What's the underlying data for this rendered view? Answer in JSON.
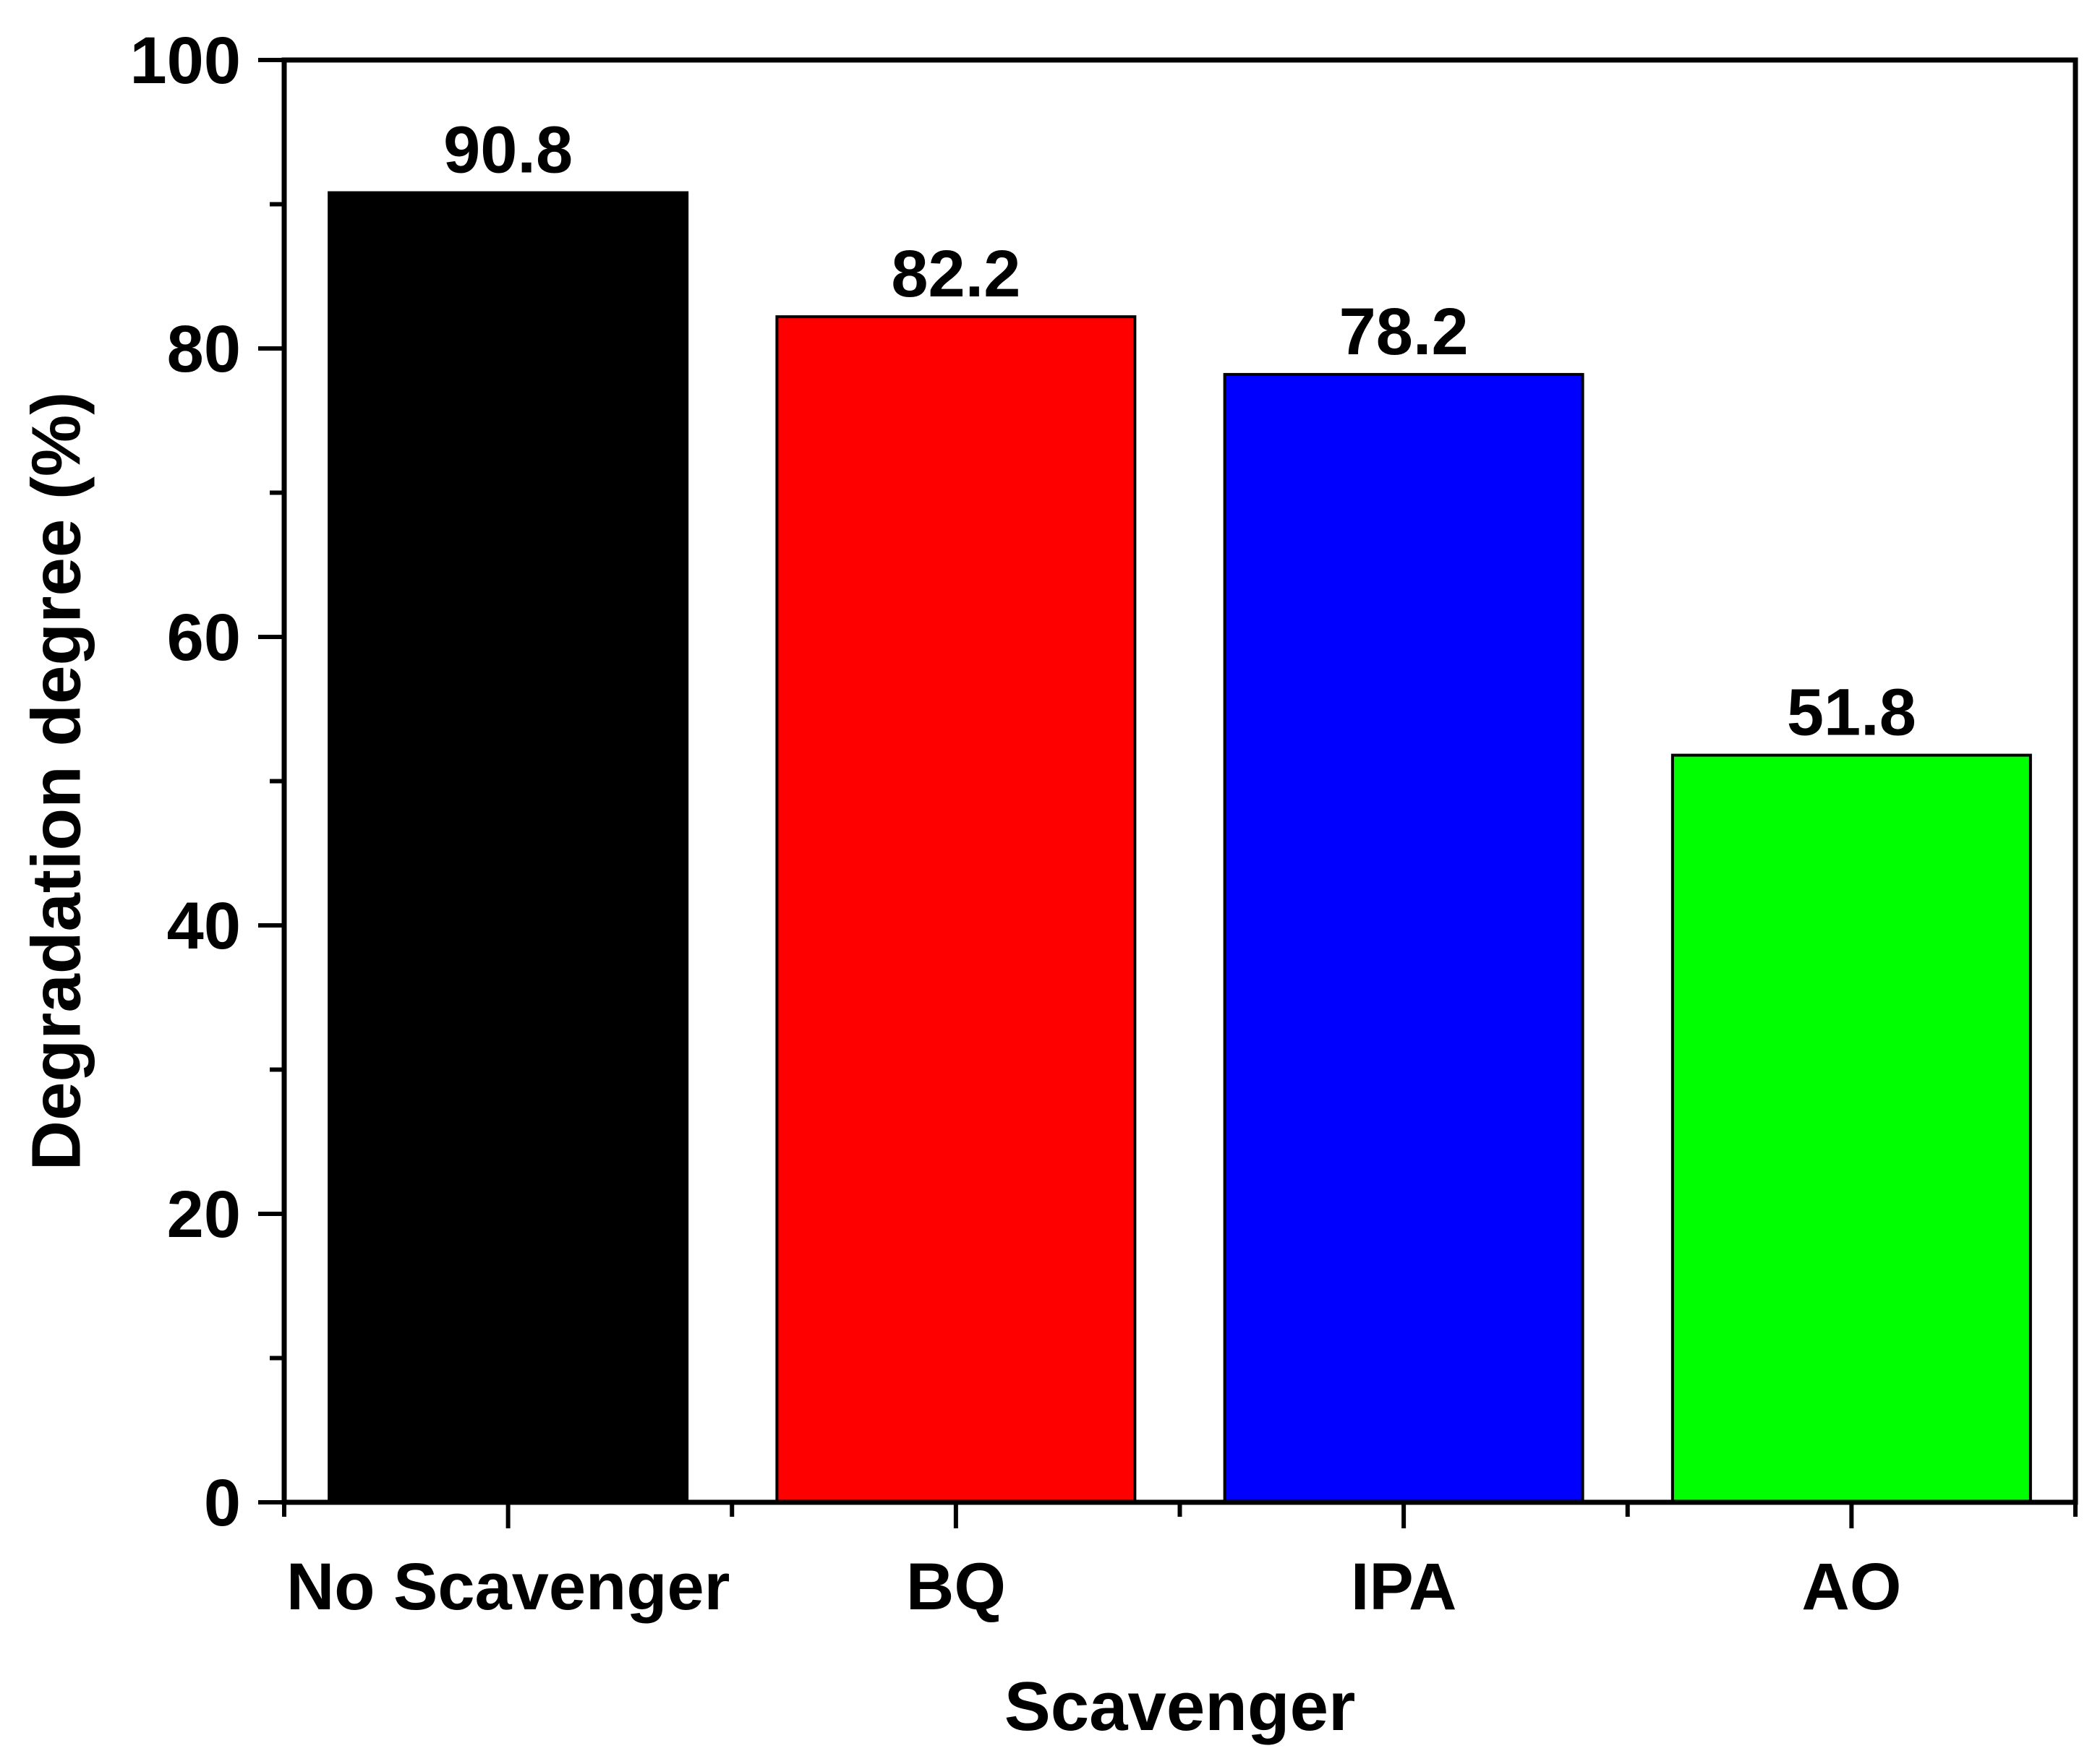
{
  "chart_data": {
    "type": "bar",
    "categories": [
      "No Scavenger",
      "BQ",
      "IPA",
      "AO"
    ],
    "values": [
      90.8,
      82.2,
      78.2,
      51.8
    ],
    "data_labels": [
      "90.8",
      "82.2",
      "78.2",
      "51.8"
    ],
    "colors": [
      "#000000",
      "#ff0000",
      "#0000ff",
      "#00ff00"
    ],
    "title": "",
    "xlabel": "Scavenger",
    "ylabel": "Degradation degree (%)",
    "ylim": [
      0,
      100
    ],
    "yticks": [
      0,
      20,
      40,
      60,
      80,
      100
    ],
    "ytick_labels": [
      "0",
      "20",
      "40",
      "60",
      "80",
      "100"
    ],
    "y_minor_ticks": [
      10,
      30,
      50,
      70,
      90
    ],
    "grid": false,
    "legend": "none"
  }
}
